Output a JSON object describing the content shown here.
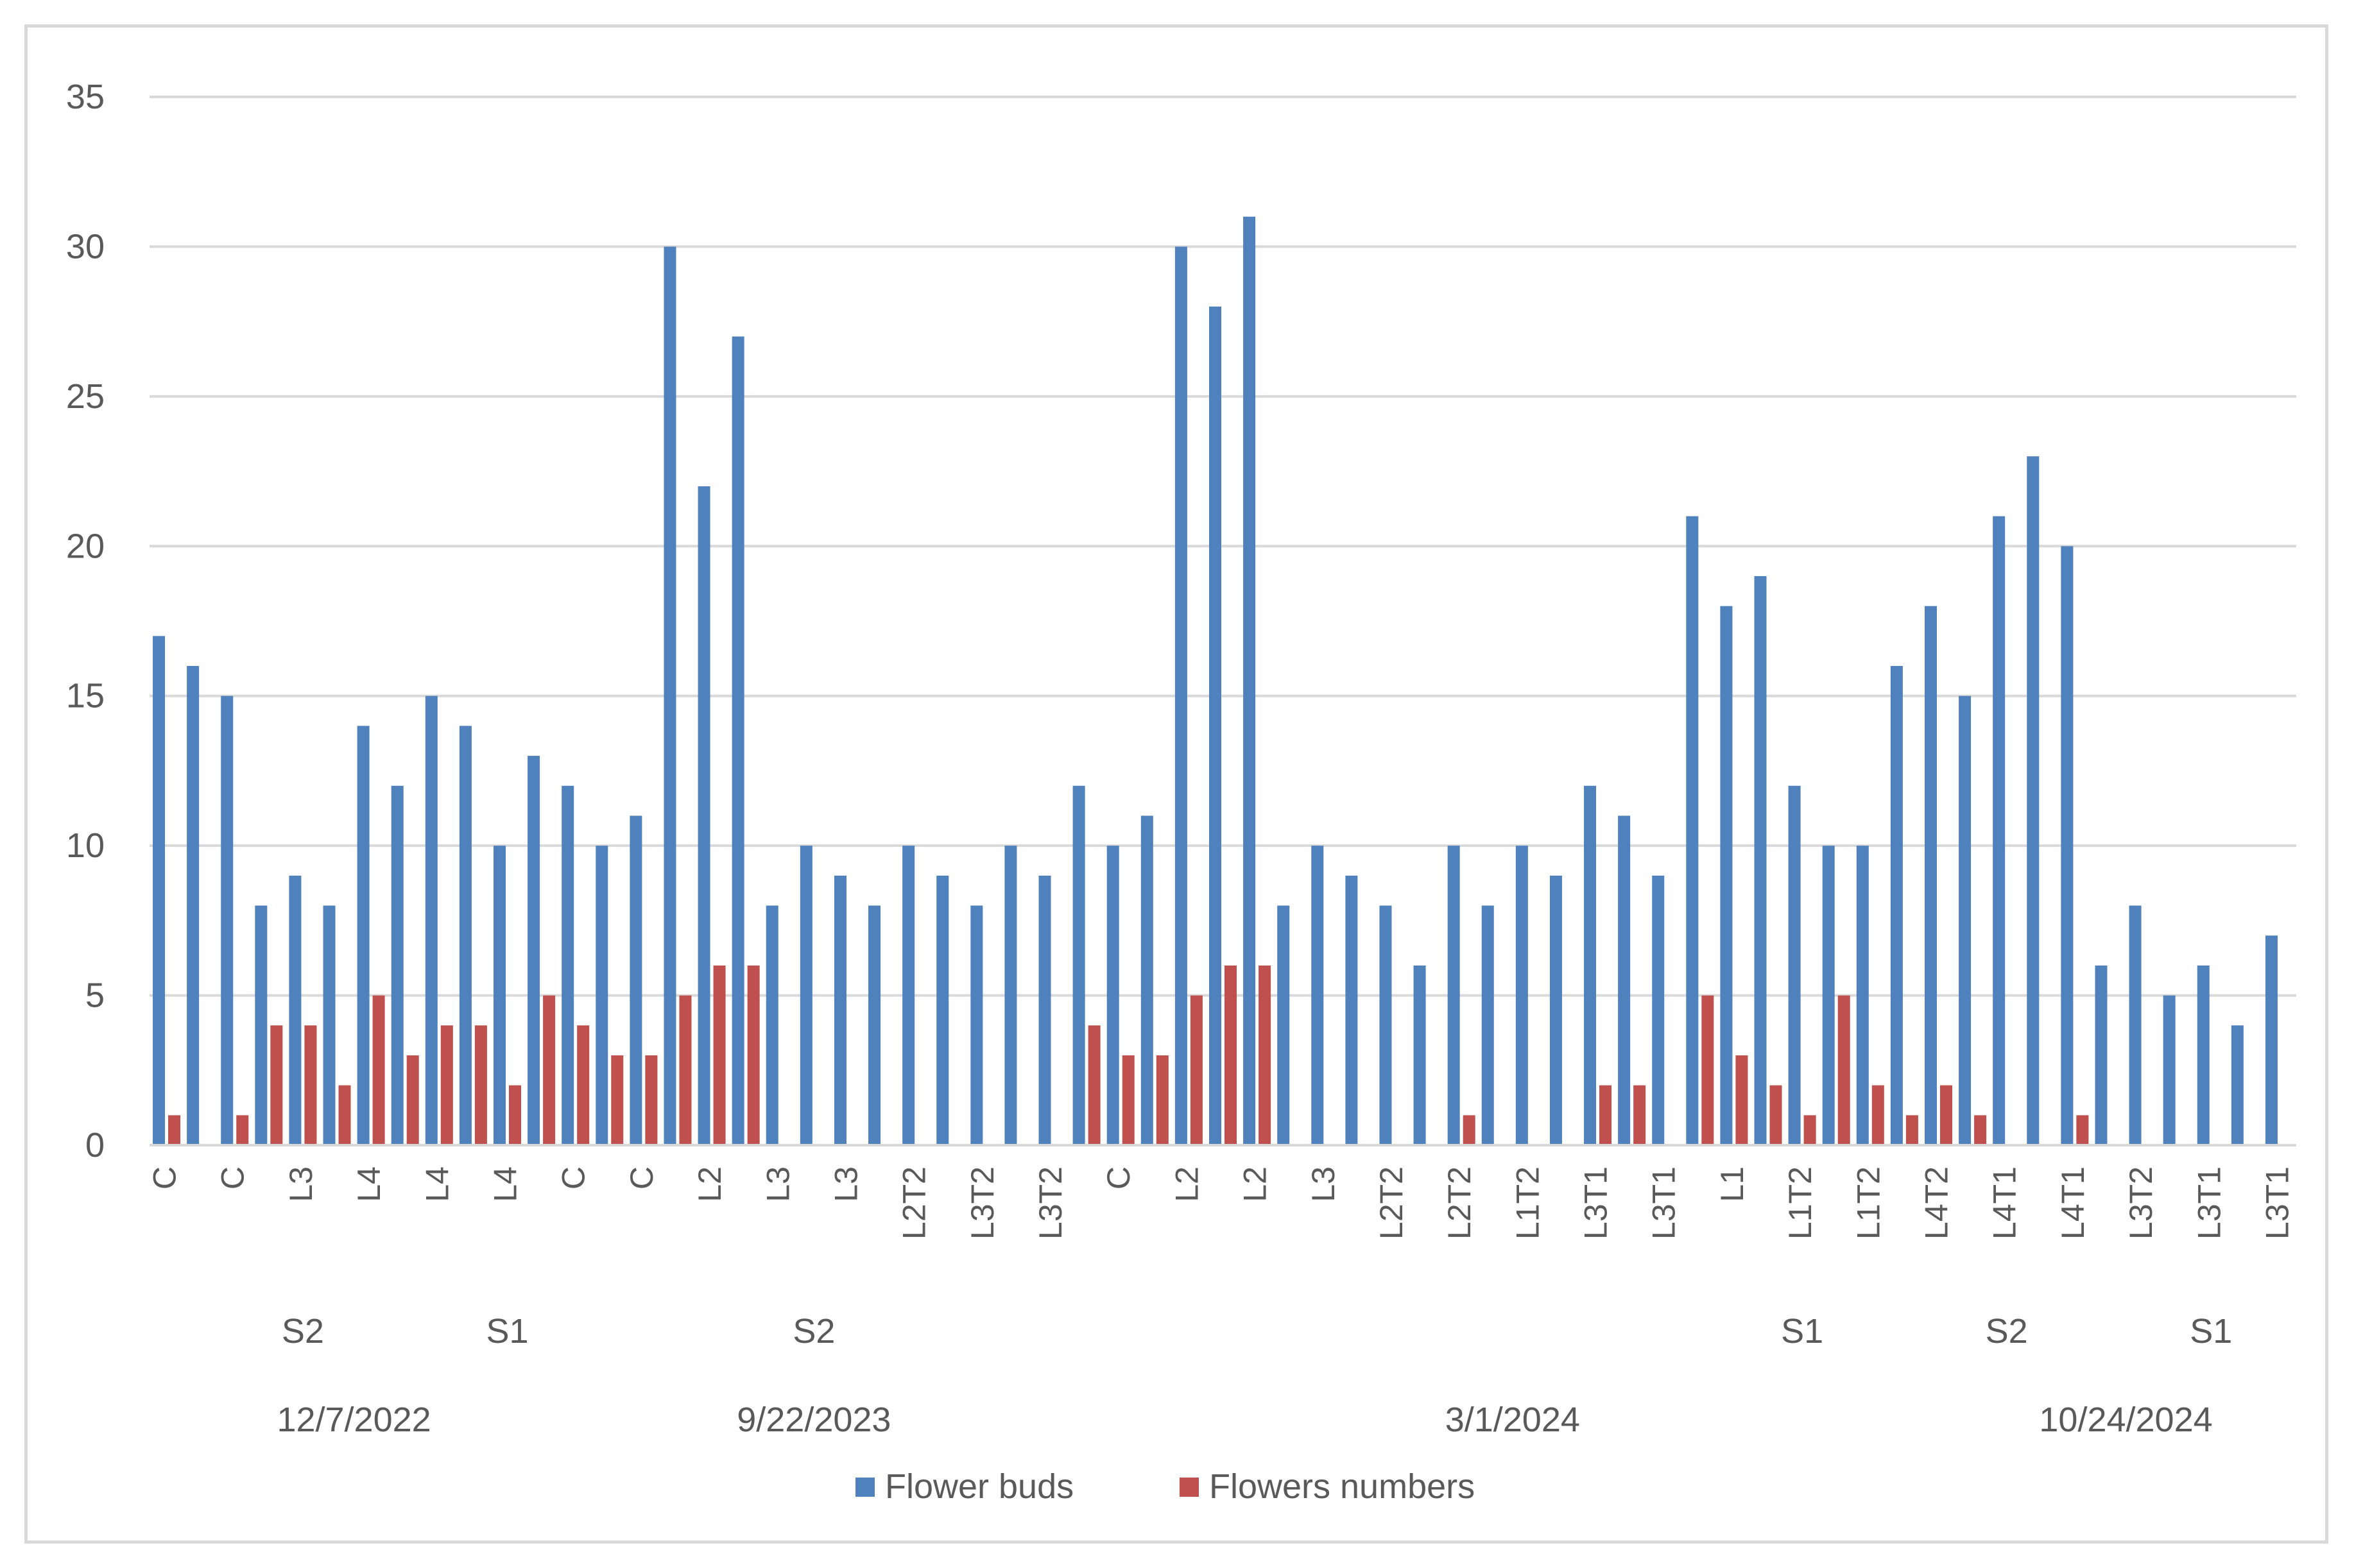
{
  "chart_data": {
    "type": "bar",
    "ylim": [
      0,
      35
    ],
    "yticks": [
      0,
      5,
      10,
      15,
      20,
      25,
      30,
      35
    ],
    "grid": true,
    "legend_position": "bottom",
    "categories": [
      "C",
      "",
      "C",
      "",
      "L3",
      "",
      "L4",
      "",
      "L4",
      "",
      "L4",
      "",
      "C",
      "",
      "C",
      "",
      "L2",
      "",
      "L3",
      "",
      "L3",
      "",
      "L2T2",
      "",
      "L3T2",
      "",
      "L3T2",
      "",
      "C",
      "",
      "L2",
      "",
      "L2",
      "",
      "L3",
      "",
      "L2T2",
      "",
      "L2T2",
      "",
      "L1T2",
      "",
      "L3T1",
      "",
      "L3T1",
      "",
      "L1",
      "",
      "L1T2",
      "",
      "L1T2",
      "",
      "L4T2",
      "",
      "L4T1",
      "",
      "L4T1",
      "",
      "L3T2",
      "",
      "L3T1",
      "",
      "L3T1"
    ],
    "series": [
      {
        "name": "Flower buds",
        "color": "#4f81bd",
        "values": [
          17,
          16,
          15,
          8,
          9,
          8,
          14,
          12,
          15,
          14,
          10,
          13,
          12,
          10,
          11,
          30,
          22,
          27,
          8,
          10,
          9,
          8,
          10,
          9,
          8,
          10,
          9,
          12,
          10,
          11,
          30,
          28,
          31,
          8,
          10,
          9,
          8,
          6,
          10,
          8,
          10,
          9,
          12,
          11,
          9,
          21,
          18,
          19,
          12,
          10,
          10,
          16,
          18,
          15,
          21,
          23,
          20,
          6,
          8,
          5,
          6,
          4,
          7
        ]
      },
      {
        "name": "Flowers numbers",
        "color": "#c0504d",
        "values": [
          1,
          0,
          1,
          4,
          4,
          2,
          5,
          3,
          4,
          4,
          2,
          5,
          4,
          3,
          3,
          5,
          6,
          6,
          0,
          0,
          0,
          0,
          0,
          0,
          0,
          0,
          0,
          4,
          3,
          3,
          5,
          6,
          6,
          0,
          0,
          0,
          0,
          0,
          1,
          0,
          0,
          0,
          2,
          2,
          0,
          5,
          3,
          2,
          1,
          5,
          2,
          1,
          2,
          1,
          0,
          0,
          1,
          0,
          0,
          0,
          0,
          0,
          0
        ]
      }
    ],
    "group_labels": [
      {
        "text": "S2",
        "index": 4
      },
      {
        "text": "S1",
        "index": 10
      },
      {
        "text": "S2",
        "index": 19
      },
      {
        "text": "S1",
        "index": 48
      },
      {
        "text": "S2",
        "index": 54
      },
      {
        "text": "S1",
        "index": 60
      }
    ],
    "date_labels": [
      {
        "text": "12/7/2022",
        "index": 5.5
      },
      {
        "text": "9/22/2023",
        "index": 19
      },
      {
        "text": "3/1/2024",
        "index": 39.5
      },
      {
        "text": "10/24/2024",
        "index": 57.5
      }
    ]
  }
}
